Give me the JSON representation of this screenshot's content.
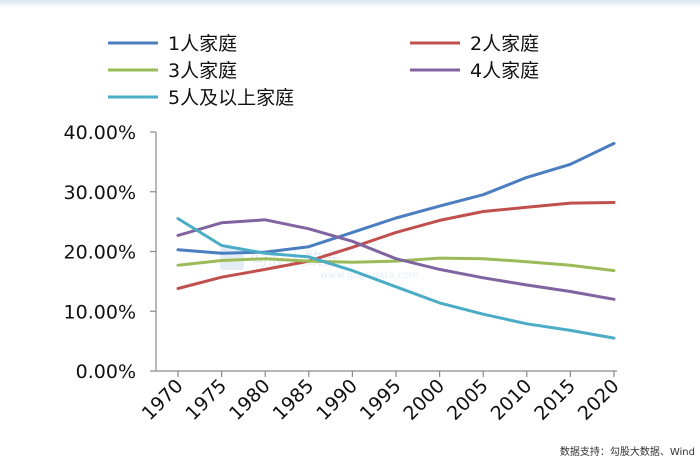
{
  "chart_data": {
    "type": "line",
    "title": "",
    "xlabel": "",
    "ylabel": "",
    "x": [
      "1970",
      "1975",
      "1980",
      "1985",
      "1990",
      "1995",
      "2000",
      "2005",
      "2010",
      "2015",
      "2020"
    ],
    "ylim": [
      0,
      0.4
    ],
    "yticks": [
      {
        "value": 0.0,
        "label": "0.00%"
      },
      {
        "value": 0.1,
        "label": "10.00%"
      },
      {
        "value": 0.2,
        "label": "20.00%"
      },
      {
        "value": 0.3,
        "label": "30.00%"
      },
      {
        "value": 0.4,
        "label": "40.00%"
      }
    ],
    "grid": false,
    "legend_position": "top",
    "series": [
      {
        "name": "1人家庭",
        "color": "#4a7ebf",
        "values": [
          0.203,
          0.197,
          0.199,
          0.208,
          0.232,
          0.256,
          0.276,
          0.295,
          0.324,
          0.346,
          0.381
        ]
      },
      {
        "name": "2人家庭",
        "color": "#c0504d",
        "values": [
          0.138,
          0.157,
          0.17,
          0.184,
          0.207,
          0.232,
          0.252,
          0.267,
          0.274,
          0.281,
          0.282
        ]
      },
      {
        "name": "3人家庭",
        "color": "#9bbb59",
        "values": [
          0.177,
          0.185,
          0.188,
          0.184,
          0.182,
          0.184,
          0.189,
          0.188,
          0.183,
          0.177,
          0.168
        ]
      },
      {
        "name": "4人家庭",
        "color": "#8064a2",
        "values": [
          0.227,
          0.248,
          0.253,
          0.238,
          0.217,
          0.188,
          0.17,
          0.156,
          0.144,
          0.133,
          0.12
        ]
      },
      {
        "name": "5人及以上家庭",
        "color": "#4bacc6",
        "values": [
          0.255,
          0.21,
          0.197,
          0.191,
          0.168,
          0.141,
          0.114,
          0.095,
          0.079,
          0.068,
          0.055
        ]
      }
    ]
  },
  "watermark": {
    "text": "勾股大数据",
    "url": "www.gogudata.com"
  },
  "source_note": "数据支持：勾股大数据、Wind"
}
